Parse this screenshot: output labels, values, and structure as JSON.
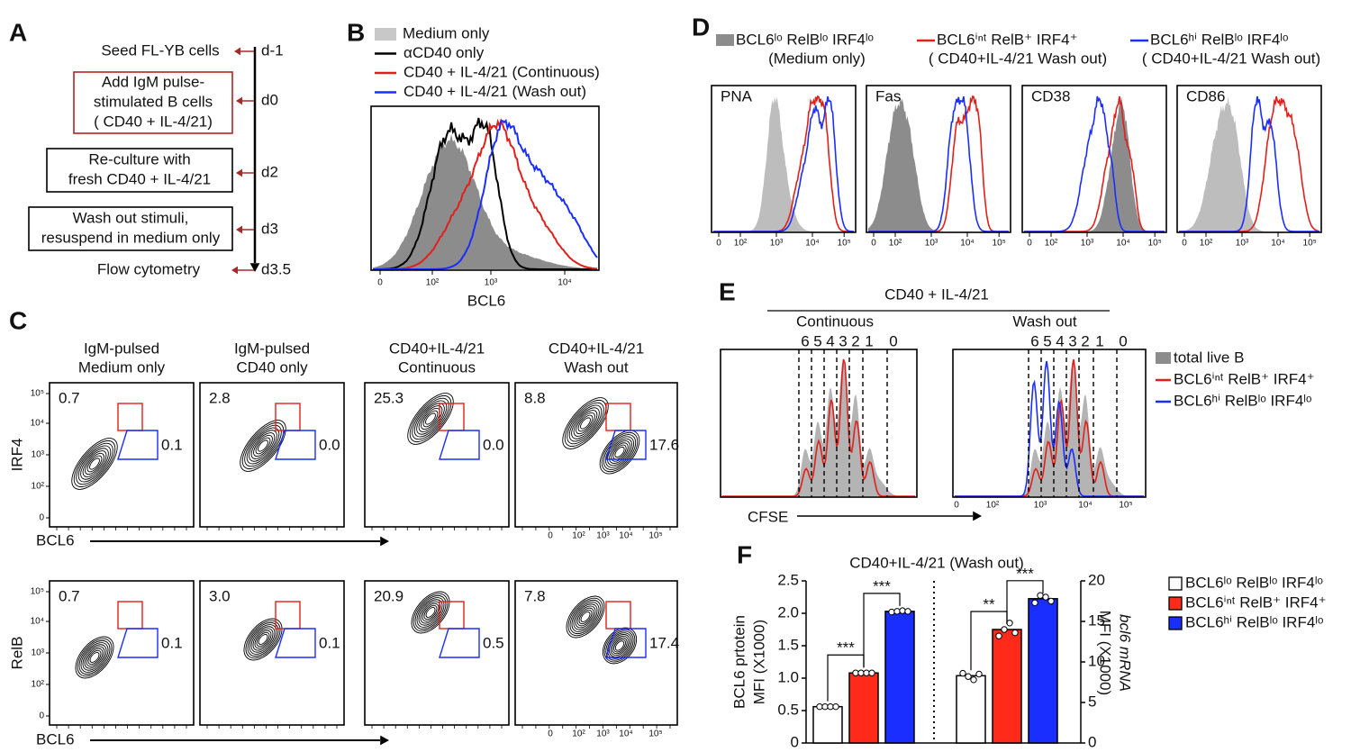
{
  "panel_A": {
    "letter": "A",
    "steps": [
      {
        "lines": [
          "Seed FL-YB cells"
        ],
        "day": "d-1"
      },
      {
        "lines": [
          "Add  IgM pulse-",
          "stimulated B cells",
          "( CD40 + IL-4/21)"
        ],
        "day": "d0"
      },
      {
        "lines": [
          "Re-culture with",
          "fresh  CD40 + IL-4/21"
        ],
        "day": "d2"
      },
      {
        "lines": [
          "Wash out stimuli,",
          "resuspend in medium only"
        ],
        "day": "d3"
      },
      {
        "lines": [
          "Flow cytometry"
        ],
        "day": "d3.5"
      }
    ]
  },
  "panel_B": {
    "letter": "B",
    "legend": [
      "Medium only",
      "αCD40 only",
      "CD40 + IL-4/21 (Continuous)",
      "CD40 + IL-4/21 (Wash out)"
    ],
    "x_label": "BCL6",
    "x_ticks": [
      "0",
      "10²",
      "10³",
      "10⁴"
    ]
  },
  "panel_C": {
    "letter": "C",
    "columns": [
      [
        "IgM-pulsed",
        "Medium only"
      ],
      [
        "IgM-pulsed",
        "CD40 only"
      ],
      [
        "CD40+IL-4/21",
        "Continuous"
      ],
      [
        "CD40+IL-4/21",
        "Wash out"
      ]
    ],
    "rows": [
      {
        "label": "IRF4",
        "gate_top": [
          "0.7",
          "2.8",
          "25.3",
          "8.8"
        ],
        "gate_right": [
          "0.1",
          "0.0",
          "0.0",
          "17.6"
        ]
      },
      {
        "label": "RelB",
        "gate_top": [
          "0.7",
          "3.0",
          "20.9",
          "7.8"
        ],
        "gate_right": [
          "0.1",
          "0.1",
          "0.5",
          "17.4"
        ]
      }
    ],
    "x_label": "BCL6",
    "y_ticks": [
      "10⁵",
      "10⁴",
      "10³",
      "10²",
      "0"
    ],
    "x_ticks": [
      "0",
      "10²",
      "10³",
      "10⁴",
      "10⁵"
    ]
  },
  "panel_D": {
    "letter": "D",
    "legend": [
      [
        "BCL6ˡᵒ RelBˡᵒ IRF4ˡᵒ",
        "(Medium only)"
      ],
      [
        "BCL6ⁱⁿᵗ RelB⁺ IRF4⁺",
        "( CD40+IL-4/21 Wash out)"
      ],
      [
        "BCL6ʰⁱ RelBˡᵒ IRF4ˡᵒ",
        "( CD40+IL-4/21 Wash out)"
      ]
    ],
    "markers": [
      "PNA",
      "Fas",
      "CD38",
      "CD86"
    ],
    "x_ticks": [
      "0",
      "10²",
      "10³",
      "10⁴",
      "10⁵"
    ]
  },
  "panel_E": {
    "letter": "E",
    "title": "CD40 + IL-4/21",
    "conditions": [
      "Continuous",
      "Wash out"
    ],
    "generations": [
      "6",
      "5",
      "4",
      "3",
      "2",
      "1",
      "0"
    ],
    "x_label": "CFSE",
    "x_ticks": [
      "0",
      "10²",
      "10³",
      "10⁴",
      "10⁵"
    ],
    "legend": [
      "total live B",
      "BCL6ⁱⁿᵗ RelB⁺ IRF4⁺",
      "BCL6ʰⁱ RelBˡᵒ IRF4ˡᵒ"
    ]
  },
  "chart_data": {
    "type": "bar",
    "letter": "F",
    "title": "CD40+IL-4/21 (Wash out)",
    "ylabel": [
      "BCL6 prtotein",
      "MFI (X1000)"
    ],
    "y2label": [
      "bcl6 mRNA",
      "MFI (X1000)"
    ],
    "categories": [
      null,
      null
    ],
    "category_axes": [
      "y",
      "y2"
    ],
    "ylim": [
      0,
      2.5
    ],
    "yticks": [
      0,
      0.5,
      {
        "value": 1,
        "label": "1.0"
      },
      1.5,
      {
        "value": 2,
        "label": "2.0"
      },
      2.5
    ],
    "y2lim": [
      0,
      20
    ],
    "y2ticks": [
      0,
      5,
      10,
      15,
      20
    ],
    "series": [
      {
        "name": "BCL6ˡᵒ RelBˡᵒ IRF4ˡᵒ",
        "color": "#ffffff",
        "values": [
          0.56,
          8.3
        ],
        "points": [
          [
            0.56,
            0.56,
            0.56,
            0.56
          ],
          [
            8.6,
            8.2,
            7.8,
            8.5
          ]
        ]
      },
      {
        "name": "BCL6ⁱⁿᵗ RelB⁺ IRF4⁺",
        "color": "#ff2a1a",
        "values": [
          1.08,
          14
        ],
        "points": [
          [
            1.08,
            1.08,
            1.08,
            1.08
          ],
          [
            13.2,
            14,
            14.8,
            13.6
          ]
        ]
      },
      {
        "name": "BCL6ʰⁱ RelBˡᵒ IRF4ˡᵒ",
        "color": "#1a2eff",
        "values": [
          2.03,
          17.8
        ],
        "points": [
          [
            2.02,
            2.03,
            2.04,
            2.03
          ],
          [
            17.3,
            18.2,
            18,
            17.5
          ]
        ]
      }
    ],
    "significance": [
      "***",
      "***",
      "**",
      "***"
    ]
  }
}
